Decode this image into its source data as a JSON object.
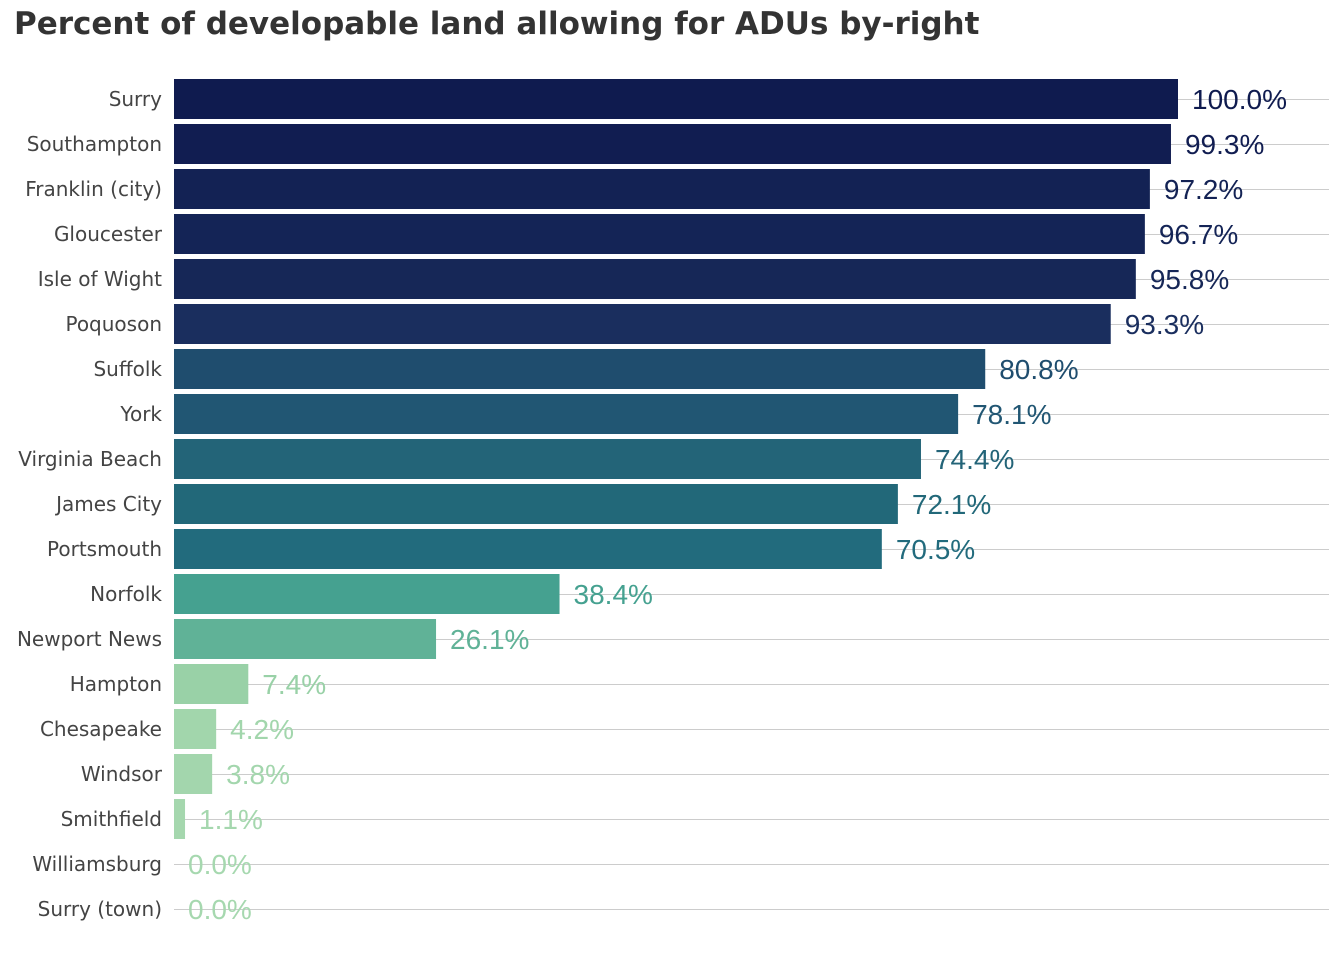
{
  "chart_data": {
    "type": "bar",
    "orientation": "horizontal",
    "title": "Percent of developable land allowing for ADUs by-right",
    "xlabel": "",
    "ylabel": "",
    "xlim": [
      0,
      100
    ],
    "grid": true,
    "categories": [
      "Surry",
      "Southampton",
      "Franklin (city)",
      "Gloucester",
      "Isle of Wight",
      "Poquoson",
      "Suffolk",
      "York",
      "Virginia Beach",
      "James City",
      "Portsmouth",
      "Norfolk",
      "Newport News",
      "Hampton",
      "Chesapeake",
      "Windsor",
      "Smithfield",
      "Williamsburg",
      "Surry (town)"
    ],
    "values": [
      100.0,
      99.3,
      97.2,
      96.7,
      95.8,
      93.3,
      80.8,
      78.1,
      74.4,
      72.1,
      70.5,
      38.4,
      26.1,
      7.4,
      4.2,
      3.8,
      1.1,
      0.0,
      0.0
    ],
    "labels": [
      "100.0%",
      "99.3%",
      "97.2%",
      "96.7%",
      "95.8%",
      "93.3%",
      "80.8%",
      "78.1%",
      "74.4%",
      "72.1%",
      "70.5%",
      "38.4%",
      "26.1%",
      "7.4%",
      "4.2%",
      "3.8%",
      "1.1%",
      "0.0%",
      "0.0%"
    ],
    "colors": [
      "#0f1b4f",
      "#111d51",
      "#132254",
      "#142456",
      "#162757",
      "#1a2e5e",
      "#1f4d6e",
      "#215673",
      "#236478",
      "#226879",
      "#226b7d",
      "#45a190",
      "#60b297",
      "#99d1a7",
      "#a2d6ac",
      "#a3d6ad",
      "#a5d7ae",
      "#a6d8af",
      "#a6d8af"
    ]
  }
}
